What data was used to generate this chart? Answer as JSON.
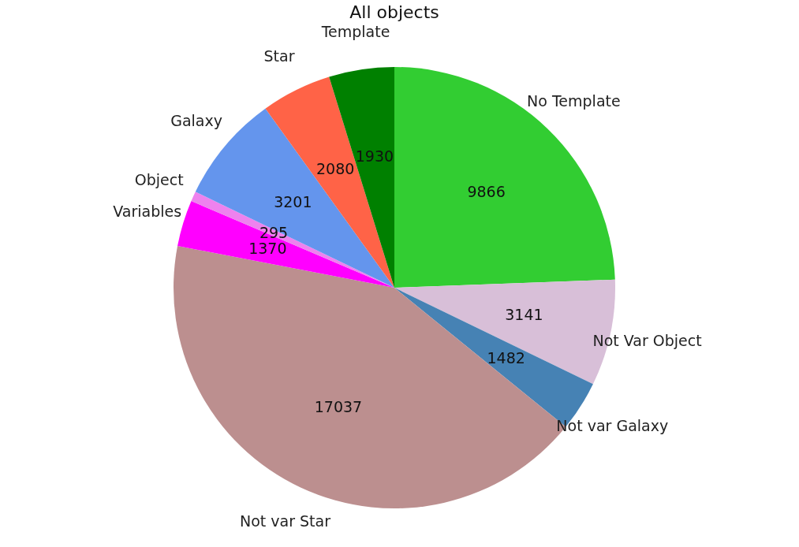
{
  "chart_data": {
    "type": "pie",
    "title": "All objects",
    "categories": [
      "No Template",
      "Not Var Object",
      "Not var Galaxy",
      "Not var Star",
      "Variables",
      "Object",
      "Galaxy",
      "Star",
      "Template"
    ],
    "values": [
      9866,
      3141,
      1482,
      17037,
      1370,
      295,
      3201,
      2080,
      1930
    ],
    "colors": [
      "#32cd32",
      "#d8bfd8",
      "#4682b4",
      "#bc8f8f",
      "#ff00ff",
      "#ee82ee",
      "#6495ed",
      "#ff6347",
      "#008000"
    ],
    "data_labels": true,
    "legend": false
  }
}
